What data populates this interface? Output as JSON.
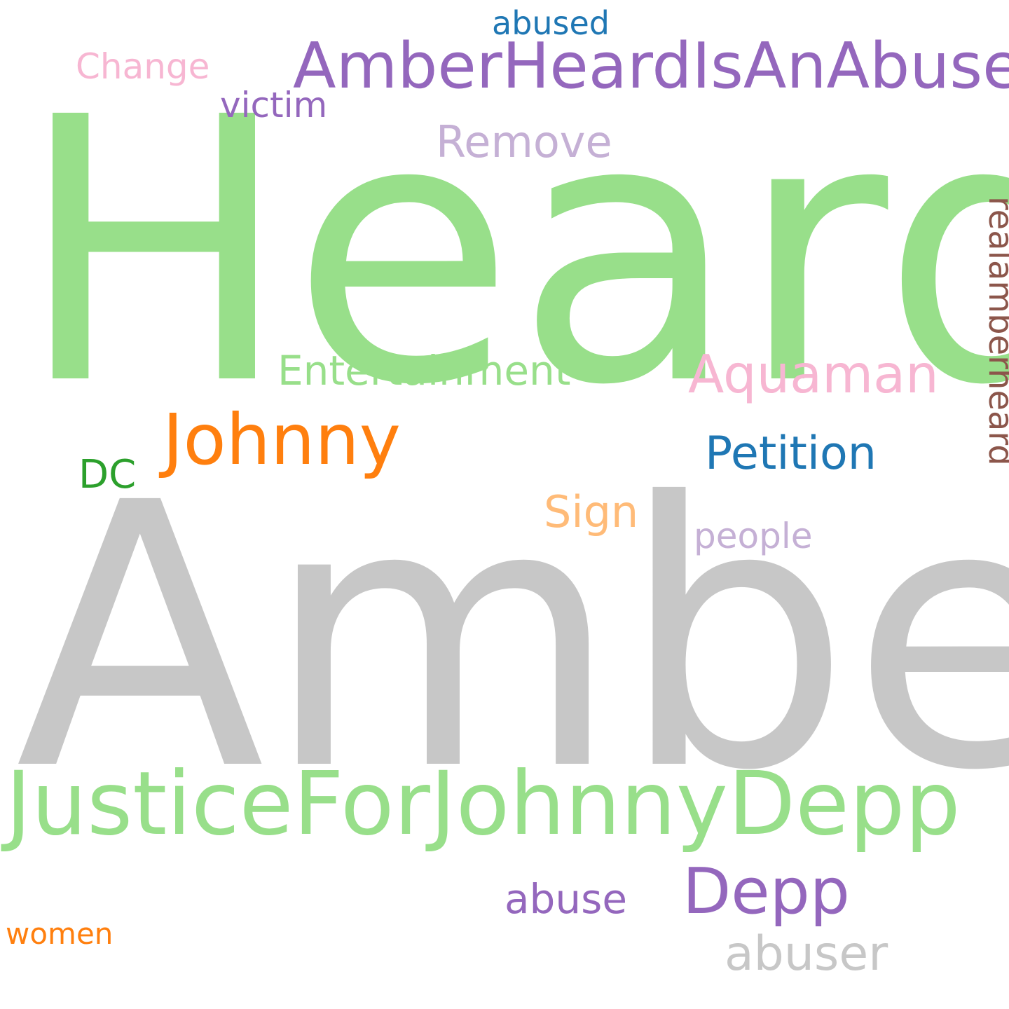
{
  "words": {
    "heard": {
      "text": "Heard",
      "color": "#98df8a"
    },
    "amber": {
      "text": "Amber",
      "color": "#c7c7c7"
    },
    "justice": {
      "text": "JusticeForJohnnyDepp",
      "color": "#98df8a"
    },
    "abuser_tag": {
      "text": "AmberHeardIsAnAbuser",
      "color": "#9467bd"
    },
    "johnny": {
      "text": "Johnny",
      "color": "#ff7f0e"
    },
    "depp": {
      "text": "Depp",
      "color": "#9467bd"
    },
    "aquaman": {
      "text": "Aquaman",
      "color": "#f7b6d2"
    },
    "entertain": {
      "text": "Entertainment",
      "color": "#98df8a"
    },
    "petition": {
      "text": "Petition",
      "color": "#1f77b4"
    },
    "remove": {
      "text": "Remove",
      "color": "#c5b0d5"
    },
    "sign": {
      "text": "Sign",
      "color": "#ffbb78"
    },
    "abuser": {
      "text": "abuser",
      "color": "#c7c7c7"
    },
    "abuse": {
      "text": "abuse",
      "color": "#9467bd"
    },
    "change": {
      "text": "Change",
      "color": "#f7b6d2"
    },
    "victim": {
      "text": "victim",
      "color": "#9467bd"
    },
    "abused": {
      "text": "abused",
      "color": "#1f77b4"
    },
    "dc": {
      "text": "DC",
      "color": "#2ca02c"
    },
    "people": {
      "text": "people",
      "color": "#c5b0d5"
    },
    "women": {
      "text": "women",
      "color": "#ff7f0e"
    },
    "realamber": {
      "text": "realamberheard",
      "color": "#8c564b"
    }
  }
}
